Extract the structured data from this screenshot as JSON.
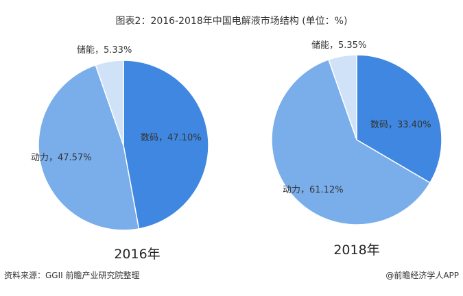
{
  "title": "图表2：2016-2018年中国电解液市场结构 (单位：%)",
  "source": "资料来源：GGII 前瞻产业研究院整理",
  "credit": "@前瞻经济学人APP",
  "colors": {
    "digital": "#3f87e0",
    "power": "#7aaeea",
    "storage": "#cfe2f8"
  },
  "chart_data": [
    {
      "type": "pie",
      "title": "2016年",
      "slices": [
        {
          "label": "数码",
          "value": 47.1,
          "text": "数码，47.10%"
        },
        {
          "label": "动力",
          "value": 47.57,
          "text": "动力，47.57%"
        },
        {
          "label": "储能",
          "value": 5.33,
          "text": "储能，5.33%"
        }
      ]
    },
    {
      "type": "pie",
      "title": "2018年",
      "slices": [
        {
          "label": "数码",
          "value": 33.4,
          "text": "数码，33.40%"
        },
        {
          "label": "动力",
          "value": 61.12,
          "text": "动力，61.12%"
        },
        {
          "label": "储能",
          "value": 5.35,
          "text": "储能，5.35%"
        }
      ]
    }
  ]
}
